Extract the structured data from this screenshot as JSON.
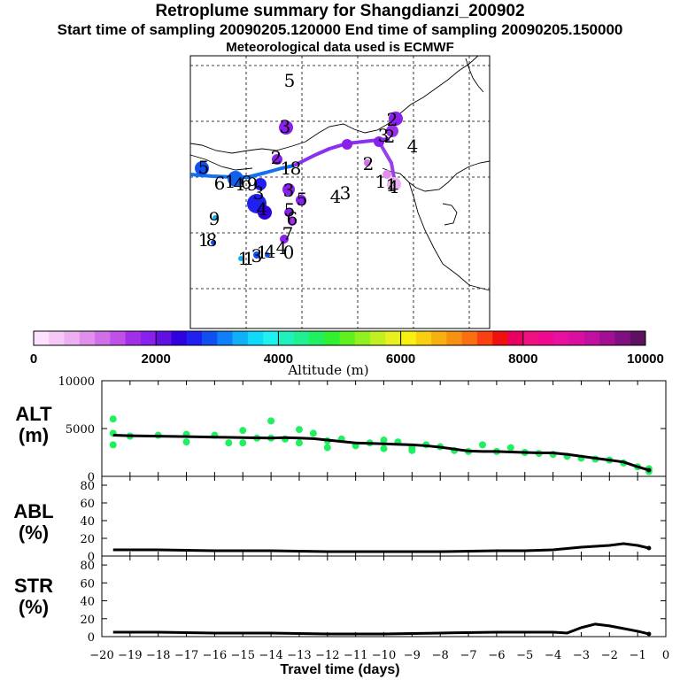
{
  "header": {
    "title": "Retroplume summary for Shangdianzi_200902",
    "sampling_line": "Start time of sampling 20090205.120000     End time of sampling 20090205.150000",
    "met_line": "Meteorological data used is ECMWF"
  },
  "map": {
    "day_labels": [
      {
        "text": "5"
      },
      {
        "text": "3"
      },
      {
        "text": "2"
      },
      {
        "text": "3"
      },
      {
        "text": "4"
      },
      {
        "text": "2"
      },
      {
        "text": "1"
      },
      {
        "text": "1"
      },
      {
        "text": "4"
      },
      {
        "text": "2"
      },
      {
        "text": "1"
      },
      {
        "text": "8"
      },
      {
        "text": "3"
      },
      {
        "text": "5"
      },
      {
        "text": "4"
      },
      {
        "text": "3"
      },
      {
        "text": "6"
      },
      {
        "text": "5"
      },
      {
        "text": "7"
      },
      {
        "text": "4"
      },
      {
        "text": "0"
      },
      {
        "text": "9"
      },
      {
        "text": "8"
      },
      {
        "text": "5"
      },
      {
        "text": "6"
      },
      {
        "text": "1"
      },
      {
        "text": "4"
      },
      {
        "text": "9"
      },
      {
        "text": "1"
      },
      {
        "text": "3"
      },
      {
        "text": "1"
      },
      {
        "text": "4"
      },
      {
        "text": "1"
      },
      {
        "text": "6"
      },
      {
        "text": "1"
      },
      {
        "text": "2"
      },
      {
        "text": "4"
      },
      {
        "text": "3"
      }
    ]
  },
  "colorbar": {
    "label": "Altitude (m)",
    "ticks": [
      "0",
      "2000",
      "4000",
      "6000",
      "8000",
      "10000"
    ],
    "colors": [
      "#ffe0ff",
      "#f5c8f5",
      "#ecb0f0",
      "#e090ec",
      "#d070e8",
      "#c050e8",
      "#a030e8",
      "#8a20ec",
      "#6010e0",
      "#3000e0",
      "#2020f0",
      "#1050f0",
      "#1080f8",
      "#10b0f8",
      "#10d8f8",
      "#20f0f0",
      "#20f0c0",
      "#20f090",
      "#20f060",
      "#30f030",
      "#60f020",
      "#90f020",
      "#c0f020",
      "#e8f020",
      "#f8f010",
      "#f8d010",
      "#f8b010",
      "#f89010",
      "#f87010",
      "#f84010",
      "#f01010",
      "#e80060",
      "#f01080",
      "#f00890",
      "#e810a0",
      "#d810a0",
      "#c010a0",
      "#a01090",
      "#801080",
      "#601060"
    ]
  },
  "panels": {
    "alt": {
      "label_line1": "ALT",
      "label_line2": "(m)"
    },
    "abl": {
      "label_line1": "ABL",
      "label_line2": "(%)"
    },
    "str": {
      "label_line1": "STR",
      "label_line2": "(%)"
    }
  },
  "x_axis_label": "Travel time (days)",
  "chart_data": [
    {
      "type": "line",
      "title": "ALT",
      "ylabel": "ALT (m)",
      "xlabel": "Travel time (days)",
      "xlim": [
        -20,
        0
      ],
      "ylim": [
        0,
        10000
      ],
      "y_ticks": [
        "0",
        "5000",
        "10000"
      ],
      "x_ticks": [
        "-20",
        "-19",
        "-18",
        "-17",
        "-16",
        "-15",
        "-14",
        "-13",
        "-12",
        "-11",
        "-10",
        "-9",
        "-8",
        "-7",
        "-6",
        "-5",
        "-4",
        "-3",
        "-2",
        "-1",
        "0"
      ],
      "series": [
        {
          "name": "median altitude",
          "x": [
            -19.6,
            -19,
            -18,
            -17,
            -16,
            -15,
            -14,
            -13.5,
            -13,
            -12.5,
            -12,
            -11.5,
            -11,
            -10.5,
            -10,
            -9.5,
            -9,
            -8.5,
            -8,
            -7.5,
            -7,
            -6.5,
            -6,
            -5.5,
            -5,
            -4.5,
            -4,
            -3.5,
            -3,
            -2.5,
            -2,
            -1.5,
            -1,
            -0.6
          ],
          "y": [
            4300,
            4250,
            4200,
            4150,
            4100,
            4050,
            4000,
            4050,
            4000,
            3950,
            3800,
            3650,
            3500,
            3450,
            3400,
            3350,
            3300,
            3200,
            3050,
            2850,
            2650,
            2600,
            2600,
            2550,
            2500,
            2450,
            2450,
            2300,
            2100,
            1900,
            1700,
            1500,
            1000,
            650
          ]
        },
        {
          "name": "particle clusters",
          "x": [
            -19.6,
            -19.6,
            -19.6,
            -19,
            -18,
            -17,
            -17,
            -16,
            -15.5,
            -15,
            -15,
            -14.5,
            -14,
            -14,
            -13.5,
            -13,
            -13,
            -12.5,
            -12,
            -12,
            -11.5,
            -11,
            -10.5,
            -10,
            -10,
            -9.5,
            -9,
            -9,
            -8.5,
            -8,
            -7.5,
            -7,
            -6.5,
            -6,
            -5.5,
            -5,
            -4.5,
            -4,
            -3.5,
            -3,
            -2.5,
            -2,
            -1.5,
            -1,
            -0.6,
            -0.6
          ],
          "y": [
            6000,
            4500,
            3300,
            4200,
            4300,
            4400,
            3600,
            4300,
            3500,
            4800,
            3500,
            4000,
            5800,
            4000,
            3900,
            4900,
            3500,
            4500,
            3700,
            3000,
            3900,
            3200,
            3500,
            3800,
            2900,
            3600,
            3000,
            2700,
            3300,
            3100,
            2700,
            2600,
            3300,
            2600,
            3000,
            2500,
            2400,
            2300,
            2100,
            1900,
            1800,
            1700,
            1400,
            1000,
            800,
            500
          ]
        }
      ]
    },
    {
      "type": "line",
      "title": "ABL",
      "ylabel": "ABL (%)",
      "xlim": [
        -20,
        0
      ],
      "ylim": [
        0,
        90
      ],
      "y_ticks": [
        "0",
        "20",
        "40",
        "60",
        "80"
      ],
      "series": [
        {
          "name": "fraction in ABL",
          "x": [
            -19.6,
            -18,
            -16,
            -14,
            -12,
            -10,
            -8,
            -6,
            -5,
            -4,
            -3,
            -2,
            -1.5,
            -1,
            -0.6
          ],
          "y": [
            7,
            7,
            6,
            6,
            5,
            5,
            5,
            6,
            6,
            7,
            10,
            12,
            14,
            12,
            9
          ]
        }
      ]
    },
    {
      "type": "line",
      "title": "STR",
      "ylabel": "STR (%)",
      "xlim": [
        -20,
        0
      ],
      "ylim": [
        0,
        90
      ],
      "y_ticks": [
        "0",
        "20",
        "40",
        "60",
        "80"
      ],
      "series": [
        {
          "name": "fraction in stratosphere",
          "x": [
            -19.6,
            -18,
            -16,
            -14,
            -12,
            -10,
            -8,
            -6,
            -5,
            -4,
            -3.5,
            -3,
            -2.5,
            -2,
            -1.5,
            -1,
            -0.6
          ],
          "y": [
            5,
            5,
            4,
            4,
            3,
            3,
            4,
            5,
            5,
            5,
            4,
            10,
            14,
            12,
            9,
            6,
            3
          ]
        }
      ]
    }
  ]
}
